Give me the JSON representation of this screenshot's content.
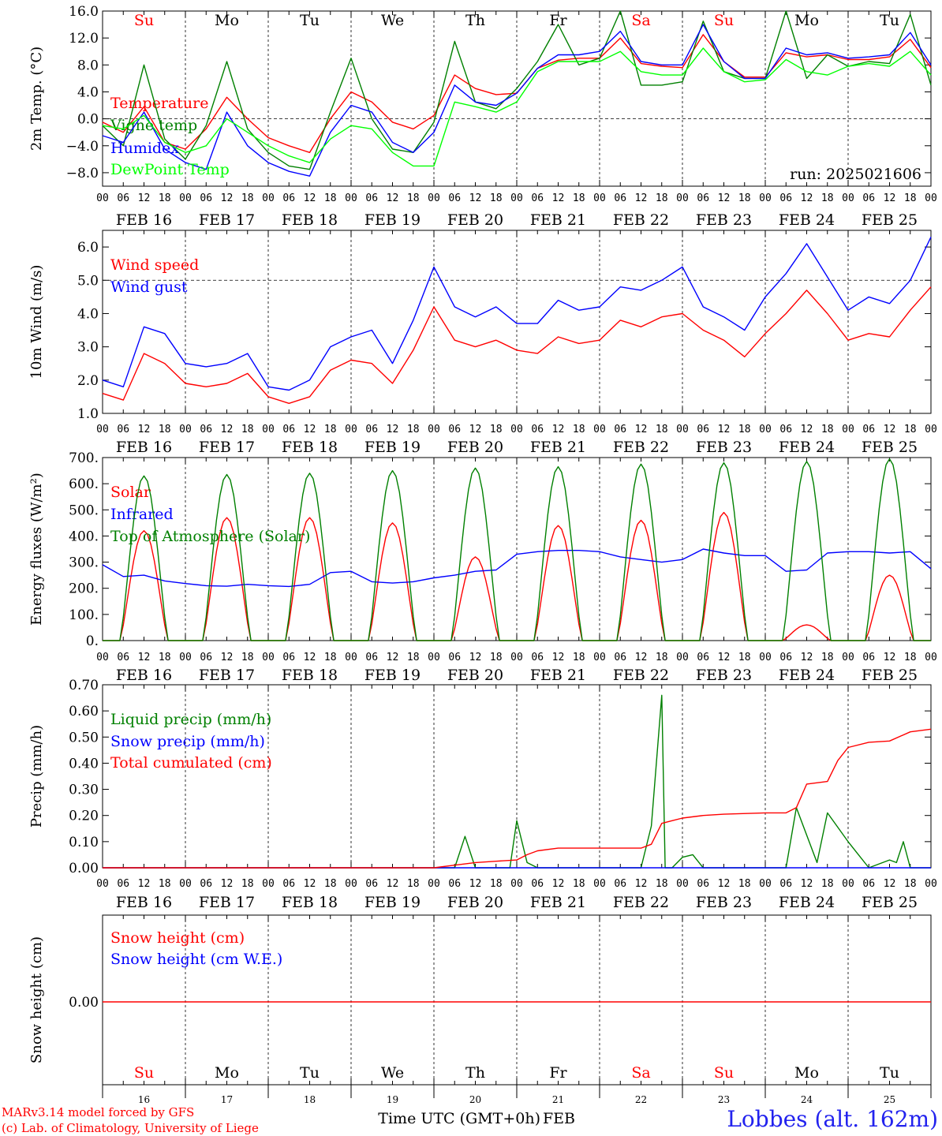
{
  "days": [
    "Su",
    "Mo",
    "Tu",
    "We",
    "Th",
    "Fr",
    "Sa",
    "Su",
    "Mo",
    "Tu"
  ],
  "weekend_days": [
    0,
    6,
    7
  ],
  "hour_labels": [
    "00",
    "06",
    "12",
    "18"
  ],
  "final_hour_label": "00",
  "date_labels": [
    "FEB 16",
    "FEB 17",
    "FEB 18",
    "FEB 19",
    "FEB 20",
    "FEB 21",
    "FEB 22",
    "FEB 23",
    "FEB 24",
    "FEB 25"
  ],
  "bottom_day_numbers": [
    "16",
    "17",
    "18",
    "19",
    "20",
    "21",
    "22",
    "23",
    "24",
    "25"
  ],
  "run_label": "run: 2025021606",
  "footer": {
    "model_note": "MARv3.14 model forced by GFS",
    "credit": "(c) Lab. of Climatology, University of Liege",
    "axis_title": "Time UTC (GMT+0h)",
    "month": "FEB",
    "station": "Lobbes (alt. 162m)"
  },
  "colors": {
    "red": "#ff0000",
    "blue": "#0000ff",
    "green": "#008000",
    "lightgreen": "#00ff00"
  },
  "chart_data": [
    {
      "type": "line",
      "ylabel": "2m Temp. (°C)",
      "ylim": [
        -10,
        16
      ],
      "y_ticks": [
        -8,
        -4,
        0,
        4,
        8,
        12,
        16
      ],
      "y_tick_labels": [
        "−8.0",
        "−4.0",
        "0.0",
        "4.0",
        "8.0",
        "12.0",
        "16.0"
      ],
      "reference_line": 0,
      "x_unit": "hours since FEB 16 00 UTC",
      "series": [
        {
          "name": "Temperature",
          "color": "#ff0000",
          "x": [
            0,
            6,
            12,
            18,
            24,
            30,
            36,
            42,
            48,
            54,
            60,
            66,
            72,
            78,
            84,
            90,
            96,
            102,
            108,
            114,
            120,
            126,
            132,
            138,
            144,
            150,
            156,
            162,
            168,
            174,
            180,
            186,
            192,
            198,
            204,
            210,
            216,
            222,
            228,
            234,
            240
          ],
          "y": [
            -0.5,
            -2,
            1.8,
            -3.5,
            -4.5,
            -1.5,
            3.2,
            0,
            -2.8,
            -4,
            -5,
            0,
            4,
            2.5,
            -0.5,
            -1.5,
            0.5,
            6.5,
            4.5,
            3.6,
            3.8,
            7.5,
            8.7,
            9,
            9,
            12,
            8.2,
            7.8,
            7.6,
            12.5,
            8.5,
            6.2,
            6.2,
            9.8,
            9.2,
            9.5,
            8.8,
            8.8,
            9.2,
            11.8,
            7.6
          ]
        },
        {
          "name": "Vigne temp",
          "color": "#008000",
          "x": [
            0,
            6,
            12,
            18,
            24,
            30,
            36,
            42,
            48,
            54,
            60,
            66,
            72,
            78,
            84,
            90,
            96,
            102,
            108,
            114,
            120,
            126,
            132,
            138,
            144,
            150,
            156,
            162,
            168,
            174,
            180,
            186,
            192,
            198,
            204,
            210,
            216,
            222,
            228,
            234,
            240
          ],
          "y": [
            -1,
            -4,
            8,
            -3,
            -6,
            -1,
            8.5,
            -1.5,
            -5,
            -7,
            -7.5,
            1,
            9,
            0,
            -4.5,
            -5,
            -0.5,
            11.5,
            2.5,
            1.5,
            4.5,
            8.5,
            14,
            8,
            9,
            16,
            5,
            5,
            5.5,
            14.5,
            7,
            6,
            6,
            16,
            6,
            9.5,
            7.8,
            8.5,
            8.2,
            15.5,
            5
          ]
        },
        {
          "name": "Humidex",
          "color": "#0000ff",
          "x": [
            0,
            6,
            12,
            18,
            24,
            30,
            36,
            42,
            48,
            54,
            60,
            66,
            72,
            78,
            84,
            90,
            96,
            102,
            108,
            114,
            120,
            126,
            132,
            138,
            144,
            150,
            156,
            162,
            168,
            174,
            180,
            186,
            192,
            198,
            204,
            210,
            216,
            222,
            228,
            234,
            240
          ],
          "y": [
            -2.5,
            -3.5,
            1,
            -4.5,
            -6.5,
            -7.5,
            1,
            -4,
            -6.5,
            -7.8,
            -8.5,
            -2,
            2,
            1,
            -3.5,
            -5,
            -2,
            5,
            2.5,
            2,
            3.8,
            7.5,
            9.5,
            9.5,
            10,
            13,
            8.5,
            8,
            8,
            14,
            8.5,
            6,
            6,
            10.5,
            9.5,
            9.8,
            9,
            9.2,
            9.5,
            12.8,
            8
          ]
        },
        {
          "name": "DewPoint Temp",
          "color": "#00ff00",
          "x": [
            0,
            6,
            12,
            18,
            24,
            30,
            36,
            42,
            48,
            54,
            60,
            66,
            72,
            78,
            84,
            90,
            96,
            102,
            108,
            114,
            120,
            126,
            132,
            138,
            144,
            150,
            156,
            162,
            168,
            174,
            180,
            186,
            192,
            198,
            204,
            210,
            216,
            222,
            228,
            234,
            240
          ],
          "y": [
            -1,
            -1.5,
            0.5,
            -3.5,
            -5,
            -4,
            0,
            -2,
            -4,
            -5.5,
            -6.5,
            -3,
            -1,
            -1.5,
            -5,
            -7,
            -7,
            2.5,
            1.8,
            1,
            2.5,
            7,
            8.5,
            8.5,
            8.5,
            10,
            7,
            6.5,
            6.5,
            10.5,
            7,
            5.5,
            5.8,
            8.8,
            7,
            6.5,
            7.8,
            8.2,
            7.8,
            10,
            6.5
          ]
        }
      ]
    },
    {
      "type": "line",
      "ylabel": "10m Wind (m/s)",
      "ylim": [
        1,
        6.5
      ],
      "y_ticks": [
        1,
        2,
        3,
        4,
        5,
        6
      ],
      "y_tick_labels": [
        "1.0",
        "2.0",
        "3.0",
        "4.0",
        "5.0",
        "6.0"
      ],
      "reference_line": 5,
      "x_unit": "hours since FEB 16 00 UTC",
      "series": [
        {
          "name": "Wind speed",
          "color": "#ff0000",
          "x": [
            0,
            6,
            12,
            18,
            24,
            30,
            36,
            42,
            48,
            54,
            60,
            66,
            72,
            78,
            84,
            90,
            96,
            102,
            108,
            114,
            120,
            126,
            132,
            138,
            144,
            150,
            156,
            162,
            168,
            174,
            180,
            186,
            192,
            198,
            204,
            210,
            216,
            222,
            228,
            234,
            240
          ],
          "y": [
            1.6,
            1.4,
            2.8,
            2.5,
            1.9,
            1.8,
            1.9,
            2.2,
            1.5,
            1.3,
            1.5,
            2.3,
            2.6,
            2.5,
            1.9,
            2.9,
            4.2,
            3.2,
            3.0,
            3.2,
            2.9,
            2.8,
            3.3,
            3.1,
            3.2,
            3.8,
            3.6,
            3.9,
            4.0,
            3.5,
            3.2,
            2.7,
            3.4,
            4.0,
            4.7,
            4.0,
            3.2,
            3.4,
            3.3,
            4.1,
            4.8
          ]
        },
        {
          "name": "Wind gust",
          "color": "#0000ff",
          "x": [
            0,
            6,
            12,
            18,
            24,
            30,
            36,
            42,
            48,
            54,
            60,
            66,
            72,
            78,
            84,
            90,
            96,
            102,
            108,
            114,
            120,
            126,
            132,
            138,
            144,
            150,
            156,
            162,
            168,
            174,
            180,
            186,
            192,
            198,
            204,
            210,
            216,
            222,
            228,
            234,
            240
          ],
          "y": [
            2.0,
            1.8,
            3.6,
            3.4,
            2.5,
            2.4,
            2.5,
            2.8,
            1.8,
            1.7,
            2.0,
            3.0,
            3.3,
            3.5,
            2.5,
            3.8,
            5.4,
            4.2,
            3.9,
            4.2,
            3.7,
            3.7,
            4.4,
            4.1,
            4.2,
            4.8,
            4.7,
            5.0,
            5.4,
            4.2,
            3.9,
            3.5,
            4.5,
            5.2,
            6.1,
            5.1,
            4.1,
            4.5,
            4.3,
            5.0,
            6.3
          ]
        }
      ]
    },
    {
      "type": "line",
      "ylabel": "Energy fluxes (W/m²)",
      "ylim": [
        0,
        700
      ],
      "y_ticks": [
        0,
        100,
        200,
        300,
        400,
        500,
        600,
        700
      ],
      "y_tick_labels": [
        "0.",
        "100.",
        "200.",
        "300.",
        "400.",
        "500.",
        "600.",
        "700."
      ],
      "x_unit": "hours since FEB 16 00 UTC",
      "series": [
        {
          "name": "Solar",
          "color": "#ff0000",
          "peak_hour": 12,
          "daily_peaks": [
            420,
            470,
            470,
            450,
            320,
            440,
            460,
            490,
            60,
            250
          ]
        },
        {
          "name": "Infrared",
          "color": "#0000ff",
          "x": [
            0,
            6,
            12,
            18,
            24,
            30,
            36,
            42,
            48,
            54,
            60,
            66,
            72,
            78,
            84,
            90,
            96,
            102,
            108,
            114,
            120,
            126,
            132,
            138,
            144,
            150,
            156,
            162,
            168,
            174,
            180,
            186,
            192,
            198,
            204,
            210,
            216,
            222,
            228,
            234,
            240
          ],
          "y": [
            290,
            245,
            250,
            228,
            218,
            210,
            208,
            215,
            210,
            207,
            215,
            260,
            265,
            225,
            220,
            225,
            240,
            250,
            265,
            270,
            330,
            340,
            345,
            345,
            340,
            320,
            310,
            300,
            310,
            350,
            335,
            325,
            325,
            265,
            270,
            335,
            340,
            340,
            335,
            340,
            275
          ]
        },
        {
          "name": "Top of Atmosphere (Solar)",
          "color": "#008000",
          "peak_hour": 12,
          "daily_peaks": [
            630,
            635,
            640,
            650,
            660,
            665,
            675,
            680,
            685,
            695
          ]
        }
      ]
    },
    {
      "type": "line",
      "ylabel": "Precip (mm/h)",
      "ylim": [
        0,
        0.7
      ],
      "y_ticks": [
        0,
        0.1,
        0.2,
        0.3,
        0.4,
        0.5,
        0.6,
        0.7
      ],
      "y_tick_labels": [
        "0.00",
        "0.10",
        "0.20",
        "0.30",
        "0.40",
        "0.50",
        "0.60",
        "0.70"
      ],
      "x_unit": "hours since FEB 16 00 UTC",
      "series": [
        {
          "name": "Liquid precip (mm/h)",
          "color": "#008000",
          "x": [
            0,
            96,
            102,
            105,
            108,
            114,
            118,
            120,
            123,
            126,
            132,
            144,
            156,
            159,
            162,
            163,
            165,
            168,
            171,
            174,
            180,
            192,
            198,
            201,
            207,
            210,
            216,
            219,
            222,
            228,
            230,
            232,
            234,
            236,
            240
          ],
          "y": [
            0,
            0,
            0,
            0.12,
            0,
            0,
            0,
            0.18,
            0.02,
            0,
            0,
            0,
            0,
            0.16,
            0.66,
            0,
            0,
            0.04,
            0.05,
            0,
            0,
            0,
            0,
            0.23,
            0.02,
            0.21,
            0.1,
            0.05,
            0,
            0.03,
            0.02,
            0.1,
            0,
            0,
            0
          ]
        },
        {
          "name": "Snow precip (mm/h)",
          "color": "#0000ff",
          "x": [
            0,
            240
          ],
          "y": [
            0,
            0
          ]
        },
        {
          "name": "Total cumulated (cm)",
          "color": "#ff0000",
          "x": [
            0,
            96,
            102,
            108,
            114,
            120,
            123,
            126,
            132,
            150,
            156,
            159,
            162,
            165,
            168,
            174,
            180,
            192,
            198,
            201,
            204,
            210,
            213,
            216,
            222,
            228,
            234,
            240
          ],
          "y": [
            0,
            0,
            0.01,
            0.02,
            0.025,
            0.03,
            0.05,
            0.065,
            0.075,
            0.075,
            0.075,
            0.09,
            0.17,
            0.18,
            0.19,
            0.2,
            0.205,
            0.21,
            0.21,
            0.23,
            0.32,
            0.33,
            0.41,
            0.46,
            0.48,
            0.485,
            0.52,
            0.53
          ]
        }
      ]
    },
    {
      "type": "line",
      "ylabel": "Snow height (cm)",
      "y_ticks": [
        0
      ],
      "y_tick_labels": [
        "0.00"
      ],
      "x_unit": "hours since FEB 16 00 UTC",
      "series": [
        {
          "name": "Snow height (cm)",
          "color": "#ff0000",
          "x": [
            0,
            240
          ],
          "y": [
            0,
            0
          ]
        },
        {
          "name": "Snow height (cm W.E.)",
          "color": "#0000ff"
        }
      ]
    }
  ]
}
